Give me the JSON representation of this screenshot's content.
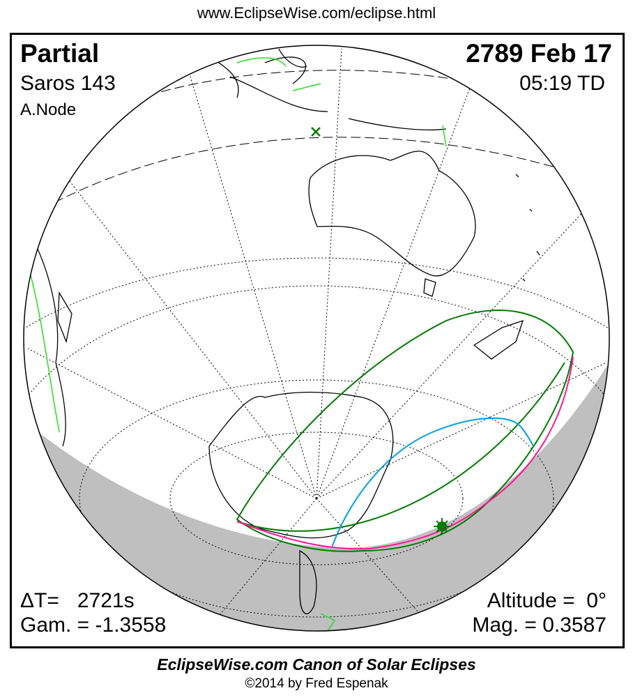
{
  "url": "www.EclipseWise.com/eclipse.html",
  "eclipse": {
    "type": "Partial",
    "saros": "Saros 143",
    "node": "A.Node",
    "date": "2789 Feb 17",
    "time": "05:19 TD",
    "delta_t_label": "ΔT=",
    "delta_t_value": "2721s",
    "gamma": "Gam. = -1.3558",
    "altitude": "Altitude =  0°",
    "magnitude": "Mag. = 0.3587"
  },
  "footer": {
    "title": "EclipseWise.com Canon of Solar Eclipses",
    "copyright": "©2014 by Fred Espenak"
  },
  "colors": {
    "night": "#bfbfbf",
    "penumbra_limits": "#007a00",
    "max_eclipse_line": "#ff1493",
    "sunrise_sunset_curve": "#00a0e6",
    "coastline": "#000000",
    "borders": "#22dd22"
  },
  "markers": [
    "greatest-eclipse-star",
    "subsolar-cross"
  ]
}
